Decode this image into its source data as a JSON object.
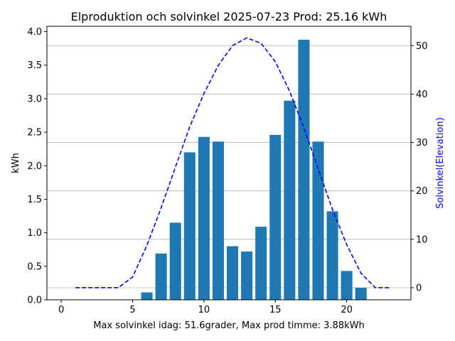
{
  "chart_data": {
    "type": "bar",
    "title": "Elproduktion och solvinkel 2025-07-23 Prod: 25.16 kWh",
    "xlabel": "Max solvinkel idag: 51.6grader, Max prod timme: 3.88kWh",
    "ylabel": "kWh",
    "y2label": "Solvinkel(Elevation)",
    "xlim": [
      -1,
      24.5
    ],
    "ylim": [
      0,
      4.08
    ],
    "y2lim": [
      -2.5,
      54
    ],
    "x_ticks": [
      "0",
      "5",
      "10",
      "15",
      "20"
    ],
    "y_ticks": [
      "0.0",
      "0.5",
      "1.0",
      "1.5",
      "2.0",
      "2.5",
      "3.0",
      "3.5",
      "4.0"
    ],
    "y2_ticks": [
      "0",
      "10",
      "20",
      "30",
      "40",
      "50"
    ],
    "grid": "horizontal lines at right-axis ticks",
    "colors": {
      "bar": "#1f77b4",
      "line": "#0000ff",
      "grid": "#b0b0b0"
    },
    "series": [
      {
        "type": "bar",
        "axis": "left",
        "x": [
          6,
          7,
          8,
          9,
          10,
          11,
          12,
          13,
          14,
          15,
          16,
          17,
          18,
          19,
          20,
          21
        ],
        "values": [
          0.11,
          0.69,
          1.15,
          2.2,
          2.43,
          2.36,
          0.8,
          0.72,
          1.09,
          2.46,
          2.97,
          3.88,
          2.36,
          1.32,
          0.43,
          0.18
        ]
      },
      {
        "type": "line",
        "axis": "right",
        "style": "dashed",
        "x": [
          1,
          2,
          3,
          4,
          5,
          6,
          7,
          8,
          9,
          10,
          11,
          12,
          13,
          14,
          15,
          16,
          17,
          18,
          19,
          20,
          21,
          22,
          23
        ],
        "values": [
          0,
          0,
          0,
          0,
          2.2,
          8.7,
          16.5,
          24.9,
          33.2,
          40.1,
          45.9,
          50.0,
          51.6,
          50.5,
          46.7,
          40.6,
          33.0,
          24.6,
          16.2,
          8.9,
          3.0,
          0,
          0
        ]
      }
    ]
  }
}
